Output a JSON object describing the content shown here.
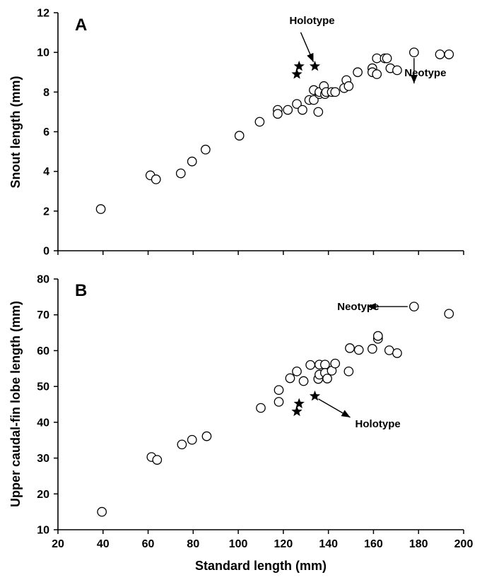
{
  "chart_data": [
    {
      "panel": "A",
      "type": "scatter",
      "ylabel": "Snout length (mm)",
      "xlabel": "",
      "xlim": [
        20,
        200
      ],
      "ylim": [
        0,
        12
      ],
      "yticks": [
        "0",
        "2",
        "4",
        "6",
        "8",
        "10",
        "12"
      ],
      "series": [
        {
          "marker": "circle",
          "points": [
            [
              39,
              2.1
            ],
            [
              61,
              3.8
            ],
            [
              63.5,
              3.6
            ],
            [
              74.5,
              3.9
            ],
            [
              79.5,
              4.5
            ],
            [
              85.5,
              5.1
            ],
            [
              100.5,
              5.8
            ],
            [
              109.5,
              6.5
            ],
            [
              117.5,
              7.1
            ],
            [
              117.5,
              6.9
            ],
            [
              122,
              7.1
            ],
            [
              126,
              7.4
            ],
            [
              128.5,
              7.1
            ],
            [
              131.5,
              7.6
            ],
            [
              133.5,
              8.1
            ],
            [
              133.5,
              7.6
            ],
            [
              135.5,
              7.0
            ],
            [
              136,
              7.9
            ],
            [
              136,
              8.0
            ],
            [
              138,
              8.3
            ],
            [
              138.5,
              7.9
            ],
            [
              139,
              8.0
            ],
            [
              141.5,
              8.0
            ],
            [
              143,
              8.0
            ],
            [
              147,
              8.2
            ],
            [
              148,
              8.6
            ],
            [
              149,
              8.3
            ],
            [
              153,
              9.0
            ],
            [
              159.5,
              9.2
            ],
            [
              159.5,
              9.0
            ],
            [
              161.5,
              9.7
            ],
            [
              161.5,
              8.9
            ],
            [
              165,
              9.7
            ],
            [
              166,
              9.7
            ],
            [
              167.5,
              9.2
            ],
            [
              170.5,
              9.1
            ],
            [
              178,
              10.0
            ],
            [
              189.5,
              9.9
            ],
            [
              193.5,
              9.9
            ]
          ]
        },
        {
          "marker": "star",
          "points": [
            [
              126,
              8.9
            ],
            [
              127,
              9.3
            ],
            [
              134,
              9.3
            ]
          ]
        }
      ],
      "annotations": [
        {
          "text": "Holotype",
          "x": 134,
          "y": 9.3
        },
        {
          "text": "Neotype",
          "x": 178,
          "y": 10.0
        }
      ]
    },
    {
      "panel": "B",
      "type": "scatter",
      "ylabel": "Upper caudal-fin lobe length (mm)",
      "xlabel": "Standard length (mm)",
      "xlim": [
        20,
        200
      ],
      "ylim": [
        10,
        80
      ],
      "xticks": [
        "20",
        "40",
        "60",
        "80",
        "100",
        "120",
        "140",
        "160",
        "180",
        "200"
      ],
      "yticks": [
        "10",
        "20",
        "30",
        "40",
        "50",
        "60",
        "70",
        "80"
      ],
      "series": [
        {
          "marker": "circle",
          "points": [
            [
              39.5,
              15
            ],
            [
              61.5,
              30.3
            ],
            [
              64,
              29.5
            ],
            [
              75,
              33.8
            ],
            [
              79.5,
              35.1
            ],
            [
              86,
              36.1
            ],
            [
              110,
              44
            ],
            [
              118,
              49
            ],
            [
              118,
              45.7
            ],
            [
              123,
              52.3
            ],
            [
              126,
              54.2
            ],
            [
              129,
              51.5
            ],
            [
              132,
              56
            ],
            [
              135.5,
              52.1
            ],
            [
              136,
              56.1
            ],
            [
              136,
              53.3
            ],
            [
              138.5,
              56.1
            ],
            [
              138.5,
              53.8
            ],
            [
              139.5,
              52.2
            ],
            [
              141.5,
              54.4
            ],
            [
              143,
              56.4
            ],
            [
              149,
              54.2
            ],
            [
              149.5,
              60.7
            ],
            [
              153.5,
              60.2
            ],
            [
              159.5,
              60.5
            ],
            [
              162,
              63.3
            ],
            [
              162,
              64.1
            ],
            [
              167,
              60.1
            ],
            [
              170.5,
              59.3
            ],
            [
              178,
              72.3
            ],
            [
              193.5,
              70.3
            ]
          ]
        },
        {
          "marker": "star",
          "points": [
            [
              126,
              43
            ],
            [
              127,
              45.2
            ],
            [
              134,
              47.3
            ]
          ]
        }
      ],
      "annotations": [
        {
          "text": "Neotype",
          "x": 178,
          "y": 72.3
        },
        {
          "text": "Holotype",
          "x": 134,
          "y": 47.3
        }
      ]
    }
  ]
}
